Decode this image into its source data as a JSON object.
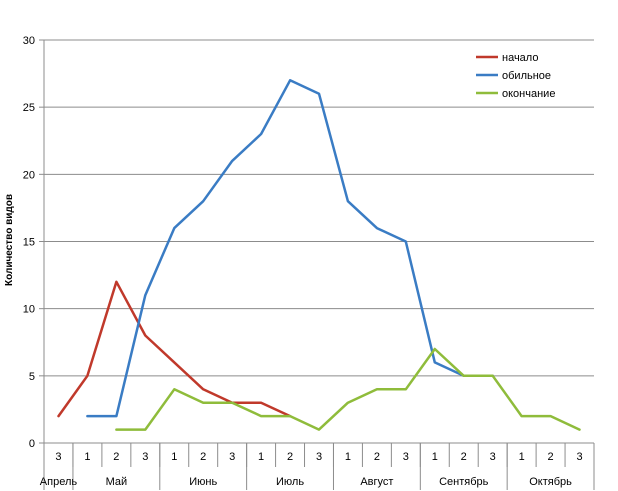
{
  "chart_data": {
    "type": "line",
    "title": "",
    "xlabel": "",
    "ylabel": "Количество видов",
    "ylim": [
      0,
      30
    ],
    "yticks": [
      0,
      5,
      10,
      15,
      20,
      25,
      30
    ],
    "grid": true,
    "legend_position": "top-right",
    "categories": [
      "3",
      "1",
      "2",
      "3",
      "1",
      "2",
      "3",
      "1",
      "2",
      "3",
      "1",
      "2",
      "3",
      "1",
      "2",
      "3",
      "1",
      "2",
      "3"
    ],
    "groups": [
      {
        "label": "Апрель",
        "span": 1
      },
      {
        "label": "Май",
        "span": 3
      },
      {
        "label": "Июнь",
        "span": 3
      },
      {
        "label": "Июль",
        "span": 3
      },
      {
        "label": "Август",
        "span": 3
      },
      {
        "label": "Сентябрь",
        "span": 3
      },
      {
        "label": "Октябрь",
        "span": 3
      }
    ],
    "series": [
      {
        "name": "начало",
        "color": "#c0392b",
        "values": [
          2,
          5,
          12,
          8,
          6,
          4,
          3,
          3,
          2,
          null,
          null,
          null,
          null,
          null,
          null,
          null,
          null,
          null,
          null
        ]
      },
      {
        "name": "обильное",
        "color": "#3a7cc4",
        "values": [
          null,
          2,
          2,
          11,
          16,
          18,
          21,
          23,
          27,
          26,
          18,
          16,
          15,
          6,
          5,
          5,
          null,
          null,
          null
        ]
      },
      {
        "name": "окончание",
        "color": "#8fbc3b",
        "values": [
          null,
          null,
          1,
          1,
          4,
          3,
          3,
          2,
          2,
          1,
          3,
          4,
          4,
          7,
          5,
          5,
          2,
          2,
          1
        ]
      }
    ]
  }
}
